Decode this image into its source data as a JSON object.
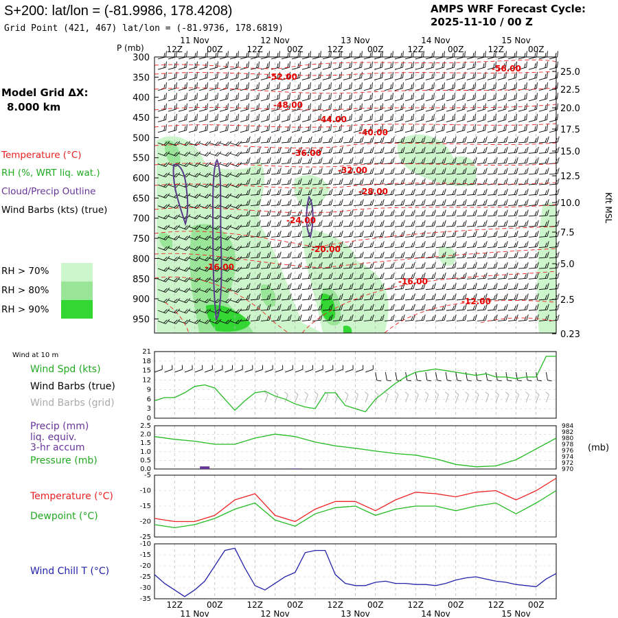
{
  "header": {
    "title": "S+200:  lat/lon = (-81.9986, 178.4208)",
    "grid_point": "Grid Point (421, 467) lat/lon = (-81.9736, 178.6819)",
    "cycle_label": "AMPS WRF Forecast Cycle:",
    "cycle_value": "2025-11-10 / 00  Z",
    "model_grid_label": "Model Grid ΔX:",
    "model_grid_value": "8.000 km"
  },
  "legend": {
    "temperature": "Temperature (°C)",
    "rh": "RH (%, WRT liq. wat.)",
    "cloud": "Cloud/Precip Outline",
    "wind": "Wind Barbs (kts) (true)",
    "rh70": "RH > 70%",
    "rh80": "RH > 80%",
    "rh90": "RH > 90%"
  },
  "colors": {
    "temperature": "#ff0000",
    "rh_text": "#22aa22",
    "cloud": "#5a3a8a",
    "rh70": "#ccf5cc",
    "rh80": "#99e699",
    "rh90": "#33d633",
    "green_line": "#22bb22",
    "red_line": "#ee2222",
    "blue_line": "#2222aa",
    "grey_barbs": "#aaaaaa",
    "precip": "#663399"
  },
  "time_axis": {
    "top_hours": [
      "12Z",
      "00Z",
      "12Z",
      "00Z",
      "12Z",
      "00Z",
      "12Z",
      "00Z",
      "12Z",
      "00Z"
    ],
    "top_dates": [
      "11 Nov",
      "12 Nov",
      "13 Nov",
      "14 Nov",
      "15 Nov"
    ],
    "bottom_hours": [
      "12Z",
      "00Z",
      "12Z",
      "00Z",
      "12Z",
      "00Z",
      "12Z",
      "00Z",
      "12Z",
      "00Z"
    ],
    "bottom_dates": [
      "11 Nov",
      "12 Nov",
      "13 Nov",
      "14 Nov",
      "15 Nov"
    ]
  },
  "chart_data": [
    {
      "type": "line",
      "name": "cross-section",
      "ylabel_left": "P (mb)",
      "ylabel_right": "Kft MSL",
      "pressure_ticks": [
        "300",
        "350",
        "400",
        "450",
        "500",
        "550",
        "600",
        "650",
        "700",
        "750",
        "800",
        "850",
        "900",
        "950"
      ],
      "height_ticks": [
        "25.0",
        "22.5",
        "20.0",
        "17.5",
        "15.0",
        "12.5",
        "10.0",
        "7.5",
        "5.0",
        "2.5",
        "0.23"
      ],
      "temperature_labels": [
        "-56.00",
        "-52.00",
        "-48.00",
        "-44.00",
        "-40.00",
        "-36.00",
        "-32.00",
        "-28.00",
        "-24.00",
        "-20.00",
        "-16.00",
        "-16.00",
        "-12.00"
      ]
    },
    {
      "type": "line",
      "name": "wind",
      "title": "Wind at 10 m",
      "label_spd": "Wind Spd (kts)",
      "label_barbs": "Wind Barbs (true)",
      "label_barbs_grid": "Wind Barbs (grid)",
      "y_ticks": [
        "21",
        "18",
        "15",
        "12",
        "9",
        "6",
        "3",
        "0"
      ],
      "ylim": [
        0,
        21
      ],
      "x_hours": [
        0,
        6,
        12,
        18,
        24,
        30,
        36,
        42,
        48,
        54,
        60,
        66,
        72,
        78,
        84,
        90,
        96,
        102,
        108,
        114,
        120,
        126,
        132,
        138,
        144,
        150,
        156,
        162,
        168,
        174,
        180,
        186,
        192,
        198,
        204,
        210,
        216,
        222,
        228,
        234,
        240
      ],
      "speed": [
        5.5,
        6.5,
        6.5,
        8,
        10,
        10.5,
        9.5,
        6,
        2.5,
        5.5,
        8,
        8.5,
        7,
        6,
        4.5,
        3.5,
        3,
        8,
        8,
        4,
        3,
        2,
        6,
        8.5,
        11,
        13,
        14.5,
        15,
        15.5,
        15,
        14.5,
        14,
        13.5,
        14,
        13,
        13,
        12.5,
        13,
        13,
        19.5,
        19.5
      ]
    },
    {
      "type": "line",
      "name": "precip-pressure",
      "label_precip": "Precip (mm)",
      "label_liq": "liq. equiv.",
      "label_accum": "3-hr accum",
      "label_pressure": "Pressure (mb)",
      "unit_right": "(mb)",
      "y_ticks_left": [
        "2.5",
        "2.0",
        "1.5",
        "1.0",
        "0.5",
        "0.0"
      ],
      "y_ticks_right": [
        "984",
        "982",
        "980",
        "978",
        "976",
        "974",
        "972",
        "970"
      ],
      "precip_x": [
        30,
        84
      ],
      "precip_mm": [
        0.15,
        0.03
      ],
      "x_hours": [
        0,
        12,
        24,
        36,
        48,
        60,
        72,
        84,
        96,
        108,
        120,
        132,
        144,
        156,
        168,
        180,
        192,
        204,
        216,
        228,
        240
      ],
      "pressure": [
        980.5,
        979.6,
        979,
        978,
        978,
        980,
        981.3,
        980.5,
        978.7,
        977.5,
        976.7,
        975.8,
        975,
        974.5,
        973.3,
        971.5,
        970.7,
        971,
        973,
        976.5,
        980
      ]
    },
    {
      "type": "line",
      "name": "temperature-dewpoint",
      "label_t": "Temperature (°C)",
      "label_td": "Dewpoint (°C)",
      "y_ticks": [
        "-5",
        "-10",
        "-15",
        "-20",
        "-25"
      ],
      "ylim": [
        -25,
        -5
      ],
      "x_hours": [
        0,
        12,
        24,
        36,
        48,
        60,
        72,
        84,
        96,
        108,
        120,
        132,
        144,
        156,
        168,
        180,
        192,
        204,
        216,
        228,
        240
      ],
      "temperature": [
        -19,
        -20,
        -20,
        -18,
        -13,
        -11,
        -18,
        -20,
        -16,
        -13.5,
        -13.5,
        -16.5,
        -13,
        -10.5,
        -11,
        -12,
        -10.5,
        -10,
        -13,
        -10,
        -6
      ],
      "dewpoint": [
        -21,
        -22,
        -21,
        -19,
        -16,
        -14,
        -19.5,
        -21.5,
        -17.5,
        -15.5,
        -15,
        -18,
        -16,
        -15,
        -15,
        -16.5,
        -15,
        -14,
        -17.5,
        -14,
        -10
      ]
    },
    {
      "type": "line",
      "name": "wind-chill",
      "label": "Wind Chill T (°C)",
      "y_ticks": [
        "-10",
        "-15",
        "-20",
        "-25",
        "-30",
        "-35"
      ],
      "ylim": [
        -35,
        -10
      ],
      "x_hours": [
        0,
        6,
        12,
        18,
        24,
        30,
        36,
        42,
        48,
        54,
        60,
        66,
        72,
        78,
        84,
        90,
        96,
        102,
        108,
        114,
        120,
        126,
        132,
        138,
        144,
        150,
        156,
        162,
        168,
        174,
        180,
        186,
        192,
        198,
        204,
        210,
        216,
        222,
        228,
        234,
        240
      ],
      "wind_chill": [
        -24,
        -28,
        -31,
        -34,
        -31,
        -27,
        -20,
        -13,
        -12,
        -21,
        -29,
        -31,
        -28,
        -25,
        -23,
        -14,
        -13,
        -13,
        -24,
        -28,
        -29,
        -29,
        -27.5,
        -27,
        -28,
        -28,
        -28.5,
        -28.5,
        -29,
        -28,
        -26.5,
        -25.5,
        -25,
        -26,
        -27,
        -27.5,
        -28.5,
        -29,
        -29.5,
        -26,
        -23.5
      ]
    }
  ]
}
